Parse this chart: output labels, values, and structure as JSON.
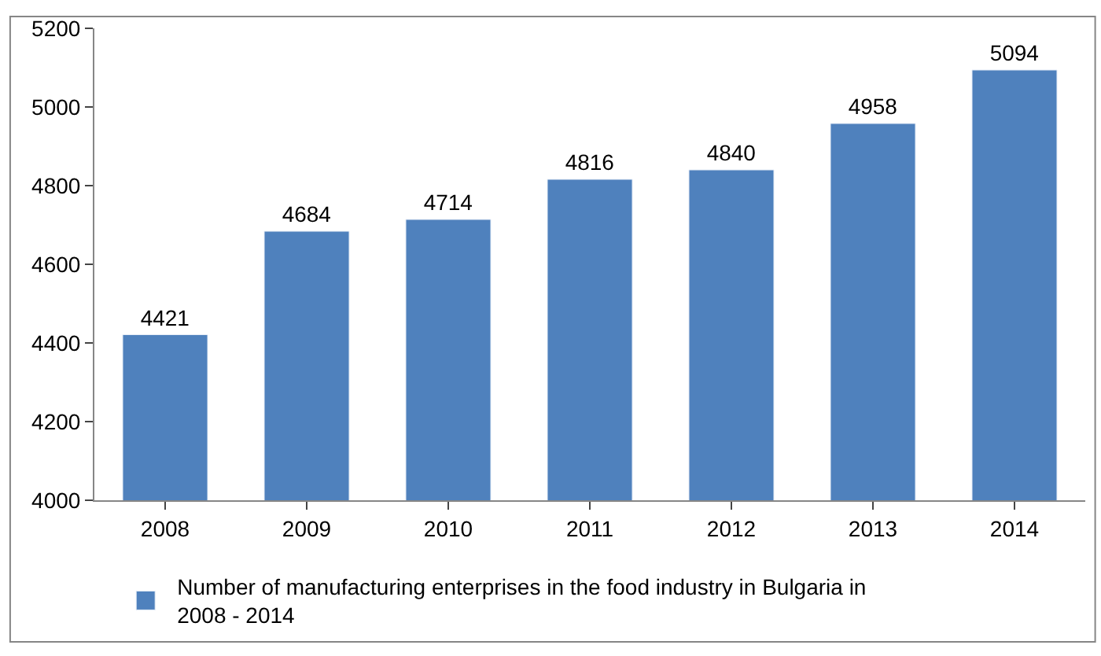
{
  "chart_data": {
    "type": "bar",
    "categories": [
      "2008",
      "2009",
      "2010",
      "2011",
      "2012",
      "2013",
      "2014"
    ],
    "series": [
      {
        "name": "Number of manufacturing enterprises in the food industry in Bulgaria in 2008 - 2014",
        "color": "#4f81bd",
        "values": [
          4421,
          4684,
          4714,
          4816,
          4840,
          4958,
          5094
        ]
      }
    ],
    "ylim": [
      4000,
      5200
    ],
    "yticks": [
      4000,
      4200,
      4400,
      4600,
      4800,
      5000,
      5200
    ],
    "legend": "bottom",
    "data_labels": true
  }
}
